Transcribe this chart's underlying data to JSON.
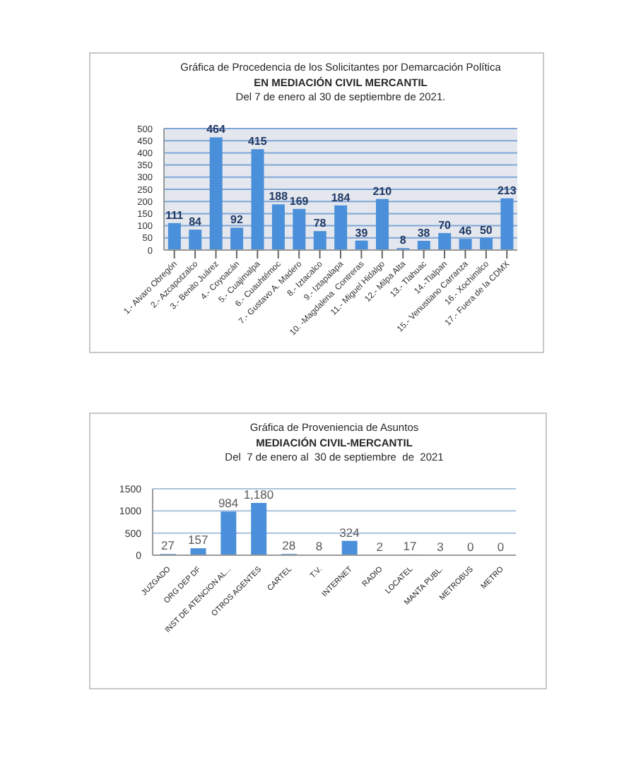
{
  "chart_data": [
    {
      "type": "bar",
      "title": "Gráfica de Procedencia de los Solicitantes por Demarcación Política",
      "subtitle": "EN MEDIACIÓN CIVIL MERCANTIL",
      "annotations": [
        "Del 7 de enero al 30 de septiembre de 2021."
      ],
      "categories": [
        "1.- Alvaro Obregón",
        "2.- Azcapotzalco",
        "3.- Benito Juárez",
        "4.- Coyoacán",
        "5.- Cuajimalpa",
        "6.- Cuauhtémoc",
        "7.- Gustavo A. Madero",
        "8.- Iztacalco",
        "9.- Iztapalapa",
        "10. -Magdalena  Contreras",
        "11.- Miguel Hidalgo",
        "12.- Milpa Alta",
        "13.- Tlahuac",
        "14.-Tlalpan",
        "15.- Venustiano Carranza",
        "16.- Xochimilco",
        "17.- Fuera de la CDMX"
      ],
      "values": [
        111,
        84,
        464,
        92,
        415,
        188,
        169,
        78,
        184,
        39,
        210,
        8,
        38,
        70,
        46,
        50,
        213
      ],
      "color": "#4a8fd9",
      "ylim": [
        0,
        500
      ],
      "yticks": [
        0,
        50,
        100,
        150,
        200,
        250,
        300,
        350,
        400,
        450,
        500
      ],
      "grid": "y",
      "data_labels": true
    },
    {
      "type": "bar",
      "title": "Gráfica de Proveniencia de Asuntos",
      "subtitle": "MEDIACIÓN CIVIL-MERCANTIL",
      "annotations": [
        "Del  7 de enero al  30 de septiembre  de  2021"
      ],
      "categories": [
        "JUZGADO",
        "ORG DEP DF",
        "INST DE ATENCION AL...",
        "OTROS AGENTES",
        "CARTEL",
        "T.V.",
        "INTERNET",
        "RADIO",
        "LOCATEL",
        "MANTA PUBL.",
        "METROBUS",
        "METRO"
      ],
      "values": [
        27,
        157,
        984,
        1180,
        28,
        8,
        324,
        2,
        17,
        3,
        0,
        0
      ],
      "color": "#4a8fd9",
      "value_labels": [
        "27",
        "157",
        "984",
        "1,180",
        "28",
        "8",
        "324",
        "2",
        "17",
        "3",
        "0",
        "0"
      ],
      "ylim": [
        0,
        1500
      ],
      "yticks": [
        0,
        500,
        1000,
        1500
      ],
      "grid": "y"
    }
  ]
}
